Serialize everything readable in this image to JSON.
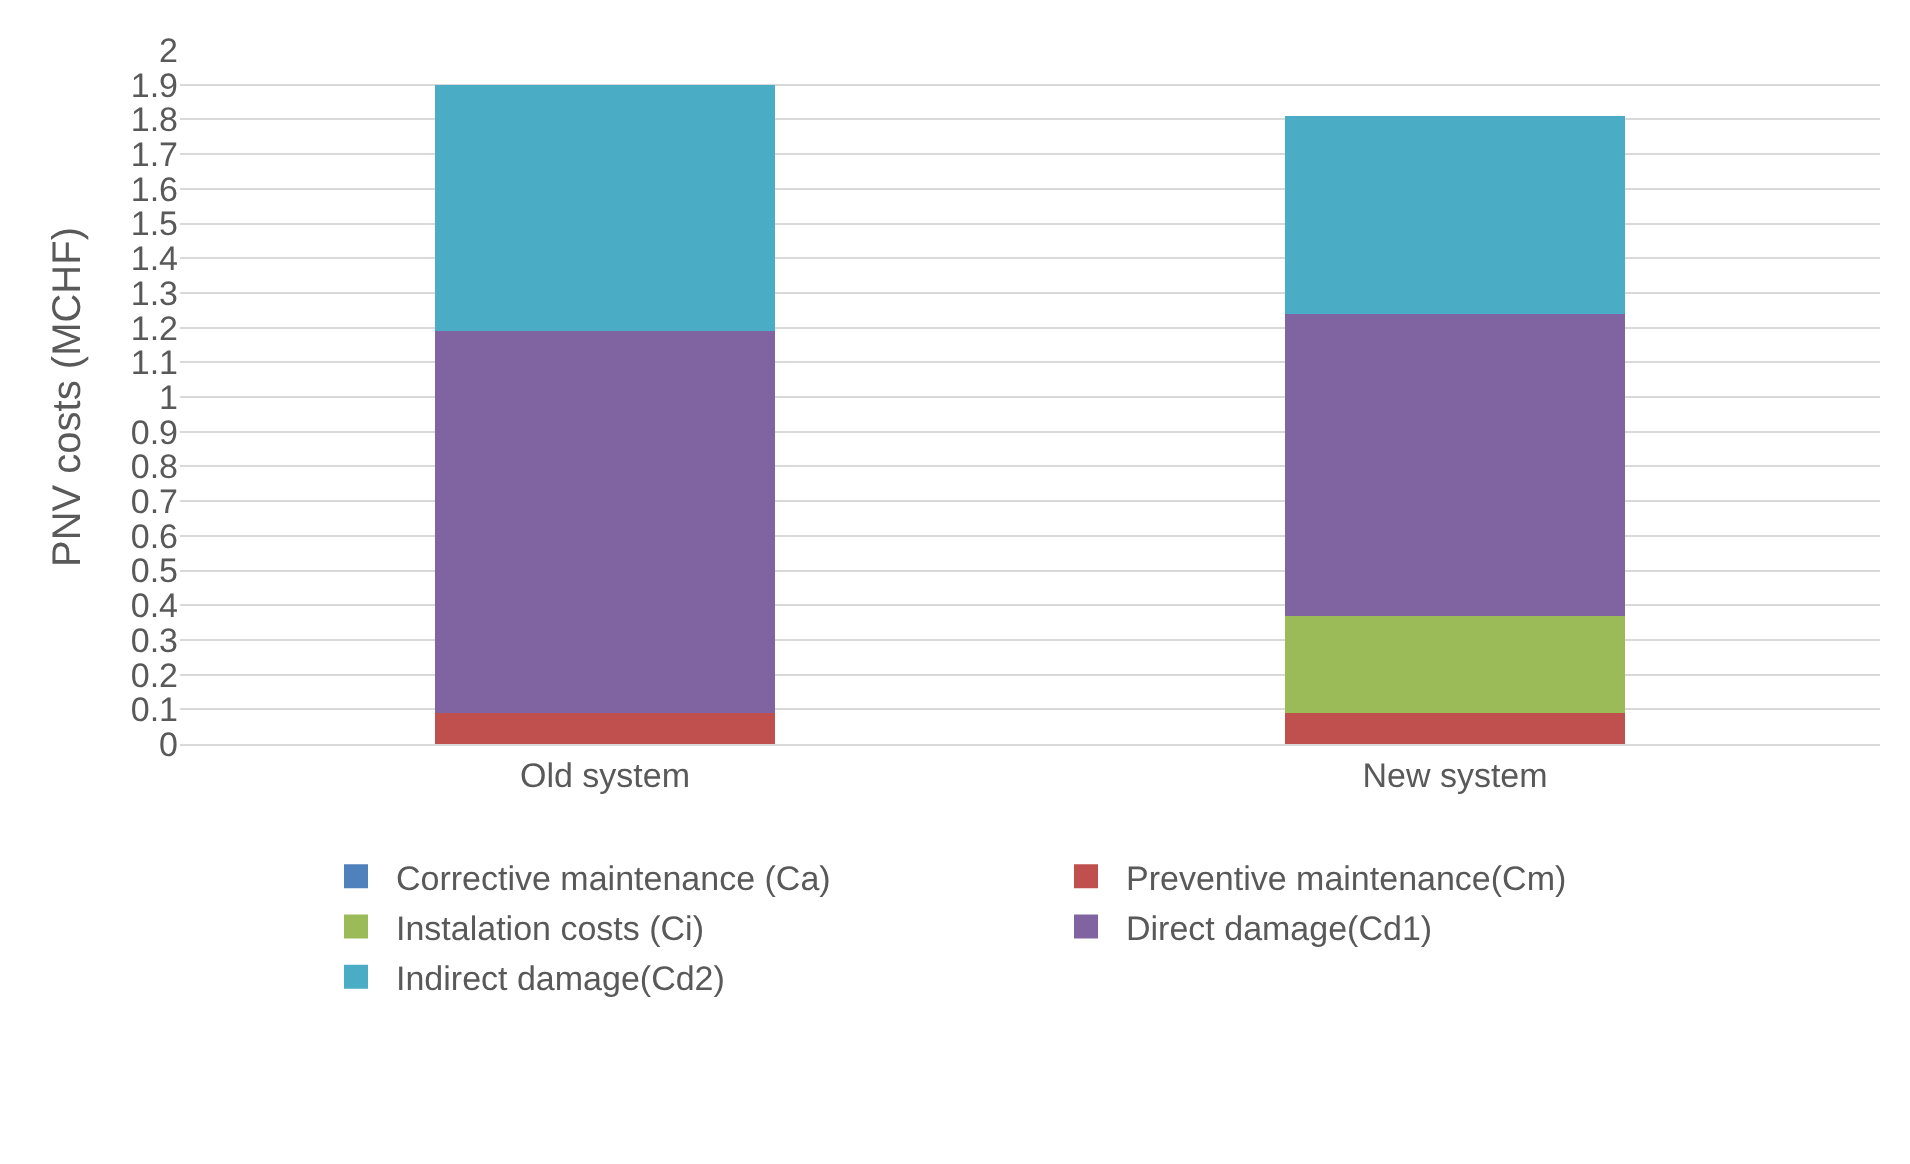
{
  "chart_data": {
    "type": "bar",
    "stacked": true,
    "ylabel": "PNV costs (MCHF)",
    "categories": [
      "Old system",
      "New system"
    ],
    "series": [
      {
        "name": "Corrective maintenance (Ca)",
        "color": "#4f81bd",
        "values": [
          0,
          0
        ]
      },
      {
        "name": "Preventive maintenance(Cm)",
        "color": "#c0504d",
        "values": [
          0.09,
          0.09
        ]
      },
      {
        "name": "Instalation costs (Ci)",
        "color": "#9bbb59",
        "values": [
          0,
          0.28
        ]
      },
      {
        "name": "Direct damage(Cd1)",
        "color": "#8064a2",
        "values": [
          1.1,
          0.87
        ]
      },
      {
        "name": "Indirect damage(Cd2)",
        "color": "#4bacc6",
        "values": [
          0.71,
          0.57
        ]
      }
    ],
    "ylim": [
      0,
      2
    ],
    "yticks": [
      0,
      0.1,
      0.2,
      0.3,
      0.4,
      0.5,
      0.6,
      0.7,
      0.8,
      0.9,
      1,
      1.1,
      1.2,
      1.3,
      1.4,
      1.5,
      1.6,
      1.7,
      1.8,
      1.9,
      2
    ],
    "grid": "y",
    "legend": "bottom"
  }
}
